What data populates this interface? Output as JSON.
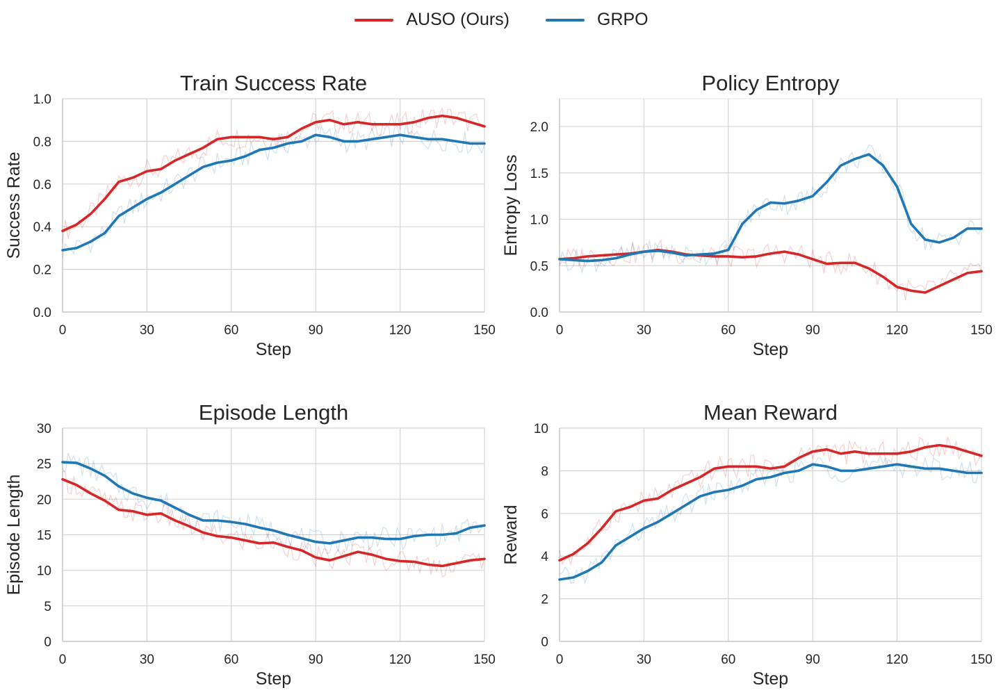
{
  "legend": {
    "auso_label": "AUSO (Ours)",
    "grpo_label": "GRPO"
  },
  "colors": {
    "auso": "#d62728",
    "grpo": "#1f77b4",
    "grid": "#d4d4d4"
  },
  "chart_data": [
    {
      "type": "line",
      "title": "Train Success Rate",
      "xlabel": "Step",
      "ylabel": "Success Rate",
      "xlim": [
        0,
        150
      ],
      "ylim": [
        0,
        1.0
      ],
      "xticks": [
        "0",
        "30",
        "60",
        "90",
        "120",
        "150"
      ],
      "yticks": [
        "0.0",
        "0.2",
        "0.4",
        "0.6",
        "0.8",
        "1.0"
      ],
      "grid": true,
      "x": [
        0,
        5,
        10,
        15,
        20,
        25,
        30,
        35,
        40,
        45,
        50,
        55,
        60,
        65,
        70,
        75,
        80,
        85,
        90,
        95,
        100,
        105,
        110,
        115,
        120,
        125,
        130,
        135,
        140,
        145,
        150
      ],
      "series": [
        {
          "name": "AUSO (Ours)",
          "values": [
            0.38,
            0.41,
            0.46,
            0.53,
            0.61,
            0.63,
            0.66,
            0.67,
            0.71,
            0.74,
            0.77,
            0.81,
            0.82,
            0.82,
            0.82,
            0.81,
            0.82,
            0.86,
            0.89,
            0.9,
            0.88,
            0.89,
            0.88,
            0.88,
            0.88,
            0.89,
            0.91,
            0.92,
            0.91,
            0.89,
            0.87
          ]
        },
        {
          "name": "GRPO",
          "values": [
            0.29,
            0.3,
            0.33,
            0.37,
            0.45,
            0.49,
            0.53,
            0.56,
            0.6,
            0.64,
            0.68,
            0.7,
            0.71,
            0.73,
            0.76,
            0.77,
            0.79,
            0.8,
            0.83,
            0.82,
            0.8,
            0.8,
            0.81,
            0.82,
            0.83,
            0.82,
            0.81,
            0.81,
            0.8,
            0.79,
            0.79
          ]
        }
      ]
    },
    {
      "type": "line",
      "title": "Policy Entropy",
      "xlabel": "Step",
      "ylabel": "Entropy Loss",
      "xlim": [
        0,
        150
      ],
      "ylim": [
        0,
        2.3
      ],
      "xticks": [
        "0",
        "30",
        "60",
        "90",
        "120",
        "150"
      ],
      "yticks": [
        "0.0",
        "0.5",
        "1.0",
        "1.5",
        "2.0"
      ],
      "ytick_values": [
        0,
        0.5,
        1.0,
        1.5,
        2.0
      ],
      "grid": true,
      "x": [
        0,
        5,
        10,
        15,
        20,
        25,
        30,
        35,
        40,
        45,
        50,
        55,
        60,
        65,
        70,
        75,
        80,
        85,
        90,
        95,
        100,
        105,
        110,
        115,
        120,
        125,
        130,
        135,
        140,
        145,
        150
      ],
      "series": [
        {
          "name": "AUSO (Ours)",
          "values": [
            0.57,
            0.58,
            0.6,
            0.61,
            0.62,
            0.63,
            0.65,
            0.67,
            0.65,
            0.62,
            0.61,
            0.6,
            0.6,
            0.59,
            0.6,
            0.63,
            0.65,
            0.62,
            0.57,
            0.52,
            0.53,
            0.53,
            0.47,
            0.38,
            0.27,
            0.23,
            0.21,
            0.28,
            0.35,
            0.42,
            0.44
          ]
        },
        {
          "name": "GRPO",
          "values": [
            0.57,
            0.56,
            0.55,
            0.56,
            0.58,
            0.62,
            0.65,
            0.66,
            0.64,
            0.61,
            0.62,
            0.63,
            0.67,
            0.95,
            1.1,
            1.18,
            1.17,
            1.2,
            1.25,
            1.4,
            1.58,
            1.65,
            1.7,
            1.58,
            1.35,
            0.95,
            0.78,
            0.75,
            0.8,
            0.9,
            0.9
          ]
        }
      ]
    },
    {
      "type": "line",
      "title": "Episode Length",
      "xlabel": "Step",
      "ylabel": "Episode Length",
      "xlim": [
        0,
        150
      ],
      "ylim": [
        0,
        30
      ],
      "xticks": [
        "0",
        "30",
        "60",
        "90",
        "120",
        "150"
      ],
      "yticks": [
        "0",
        "5",
        "10",
        "15",
        "20",
        "25",
        "30"
      ],
      "grid": true,
      "x": [
        0,
        5,
        10,
        15,
        20,
        25,
        30,
        35,
        40,
        45,
        50,
        55,
        60,
        65,
        70,
        75,
        80,
        85,
        90,
        95,
        100,
        105,
        110,
        115,
        120,
        125,
        130,
        135,
        140,
        145,
        150
      ],
      "series": [
        {
          "name": "AUSO (Ours)",
          "values": [
            22.8,
            22.0,
            20.8,
            19.8,
            18.5,
            18.3,
            17.8,
            18.0,
            17.0,
            16.2,
            15.3,
            14.8,
            14.6,
            14.2,
            13.8,
            13.9,
            13.3,
            12.8,
            11.8,
            11.4,
            12.0,
            12.6,
            12.2,
            11.6,
            11.3,
            11.2,
            10.8,
            10.6,
            11.0,
            11.4,
            11.6
          ]
        },
        {
          "name": "GRPO",
          "values": [
            25.2,
            25.1,
            24.3,
            23.3,
            21.8,
            20.8,
            20.2,
            19.8,
            18.8,
            17.8,
            17.0,
            17.0,
            16.8,
            16.5,
            16.0,
            15.6,
            15.0,
            14.5,
            14.0,
            13.8,
            14.2,
            14.6,
            14.6,
            14.4,
            14.4,
            14.8,
            15.0,
            15.0,
            15.2,
            16.0,
            16.3
          ]
        }
      ]
    },
    {
      "type": "line",
      "title": "Mean Reward",
      "xlabel": "Step",
      "ylabel": "Reward",
      "xlim": [
        0,
        150
      ],
      "ylim": [
        0,
        10
      ],
      "xticks": [
        "0",
        "30",
        "60",
        "90",
        "120",
        "150"
      ],
      "yticks": [
        "0",
        "2",
        "4",
        "6",
        "8",
        "10"
      ],
      "grid": true,
      "x": [
        0,
        5,
        10,
        15,
        20,
        25,
        30,
        35,
        40,
        45,
        50,
        55,
        60,
        65,
        70,
        75,
        80,
        85,
        90,
        95,
        100,
        105,
        110,
        115,
        120,
        125,
        130,
        135,
        140,
        145,
        150
      ],
      "series": [
        {
          "name": "AUSO (Ours)",
          "values": [
            3.8,
            4.1,
            4.6,
            5.3,
            6.1,
            6.3,
            6.6,
            6.7,
            7.1,
            7.4,
            7.7,
            8.1,
            8.2,
            8.2,
            8.2,
            8.1,
            8.2,
            8.6,
            8.9,
            9.0,
            8.8,
            8.9,
            8.8,
            8.8,
            8.8,
            8.9,
            9.1,
            9.2,
            9.1,
            8.9,
            8.7
          ]
        },
        {
          "name": "GRPO",
          "values": [
            2.9,
            3.0,
            3.3,
            3.7,
            4.5,
            4.9,
            5.3,
            5.6,
            6.0,
            6.4,
            6.8,
            7.0,
            7.1,
            7.3,
            7.6,
            7.7,
            7.9,
            8.0,
            8.3,
            8.2,
            8.0,
            8.0,
            8.1,
            8.2,
            8.3,
            8.2,
            8.1,
            8.1,
            8.0,
            7.9,
            7.9
          ]
        }
      ]
    }
  ]
}
